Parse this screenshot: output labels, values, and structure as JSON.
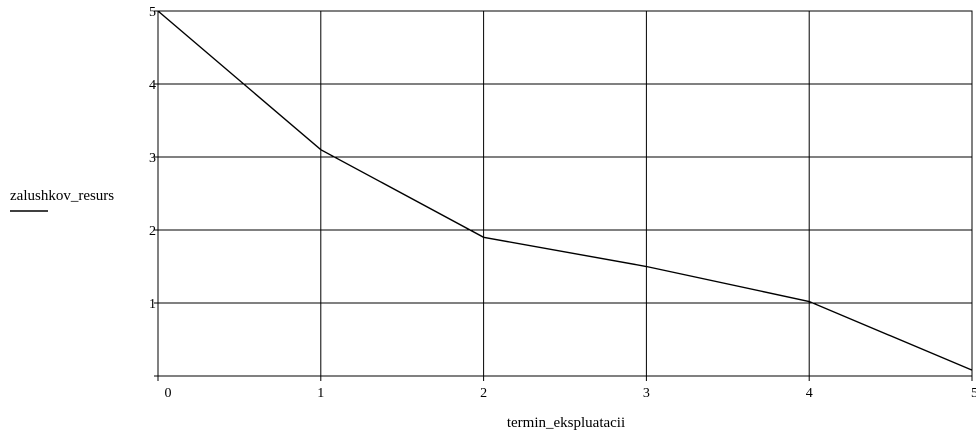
{
  "chart_data": {
    "type": "line",
    "title": "",
    "xlabel": "termin_ekspluatacii",
    "ylabel": "zalushkov_resurs",
    "xlim": [
      0,
      5
    ],
    "ylim": [
      0,
      5
    ],
    "x_ticks": [
      "0",
      "1",
      "2",
      "3",
      "4",
      "5"
    ],
    "y_ticks": [
      "1",
      "2",
      "3",
      "4",
      "5"
    ],
    "grid": true,
    "legend": "none",
    "series": [
      {
        "x": [
          0,
          1,
          2,
          3,
          4,
          5
        ],
        "y": [
          5,
          3.1,
          1.9,
          1.5,
          1.02,
          0.08
        ],
        "color": "#000000"
      }
    ]
  }
}
